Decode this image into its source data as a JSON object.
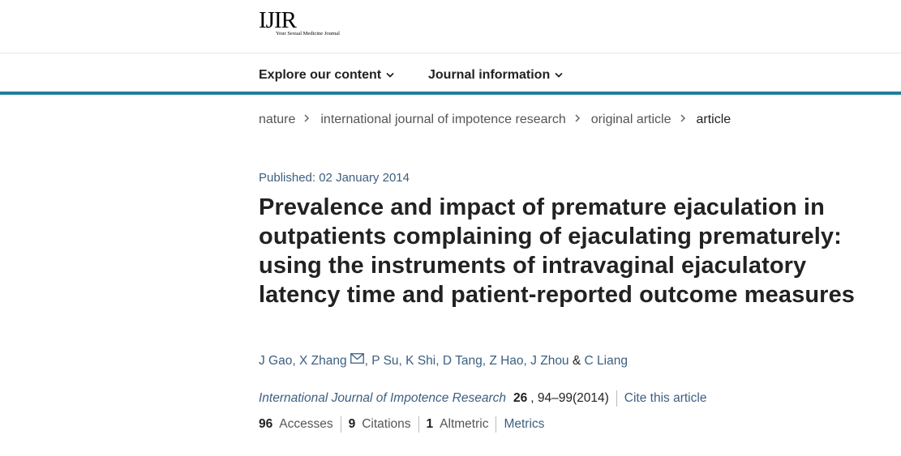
{
  "header": {
    "logo_main": "IJIR",
    "logo_tagline": "Your Sexual Medicine Journal"
  },
  "nav": {
    "items": [
      {
        "label": "Explore our content",
        "icon": "chevron-down-icon"
      },
      {
        "label": "Journal information",
        "icon": "chevron-down-icon"
      }
    ]
  },
  "breadcrumb": {
    "items": [
      "nature",
      "international journal of impotence research",
      "original article",
      "article"
    ],
    "separator_icon": "chevron-right-icon"
  },
  "article": {
    "published": "Published: 02 January 2014",
    "title": "Prevalence and impact of premature ejaculation in outpatients complaining of ejaculating prematurely: using the instruments of intravaginal ejaculatory latency time and patient-reported outcome measures",
    "authors": {
      "a1": "J Gao",
      "comma1": ",",
      "a2": "X Zhang",
      "mail_icon": "mail-icon",
      "comma2": ",",
      "a3": "P Su",
      "comma3": ",",
      "a4": "K Shi",
      "comma4": ",",
      "a5": "D Tang",
      "comma5": ",",
      "a6": "Z Hao",
      "comma6": ",",
      "a7": "J Zhou",
      "amp": "&",
      "a8": "C Liang"
    },
    "citation": {
      "journal": "International Journal of Impotence Research",
      "volume": "26",
      "pages": ", 94–99(2014)",
      "cite_link": "Cite this article"
    },
    "metrics": {
      "accesses_count": "96",
      "accesses_label": "Accesses",
      "citations_count": "9",
      "citations_label": "Citations",
      "altmetric_count": "1",
      "altmetric_label": "Altmetric",
      "metrics_link": "Metrics"
    }
  },
  "colors": {
    "accent_bar": "#1e7f99",
    "link": "#3c5f80",
    "text": "#222222"
  }
}
